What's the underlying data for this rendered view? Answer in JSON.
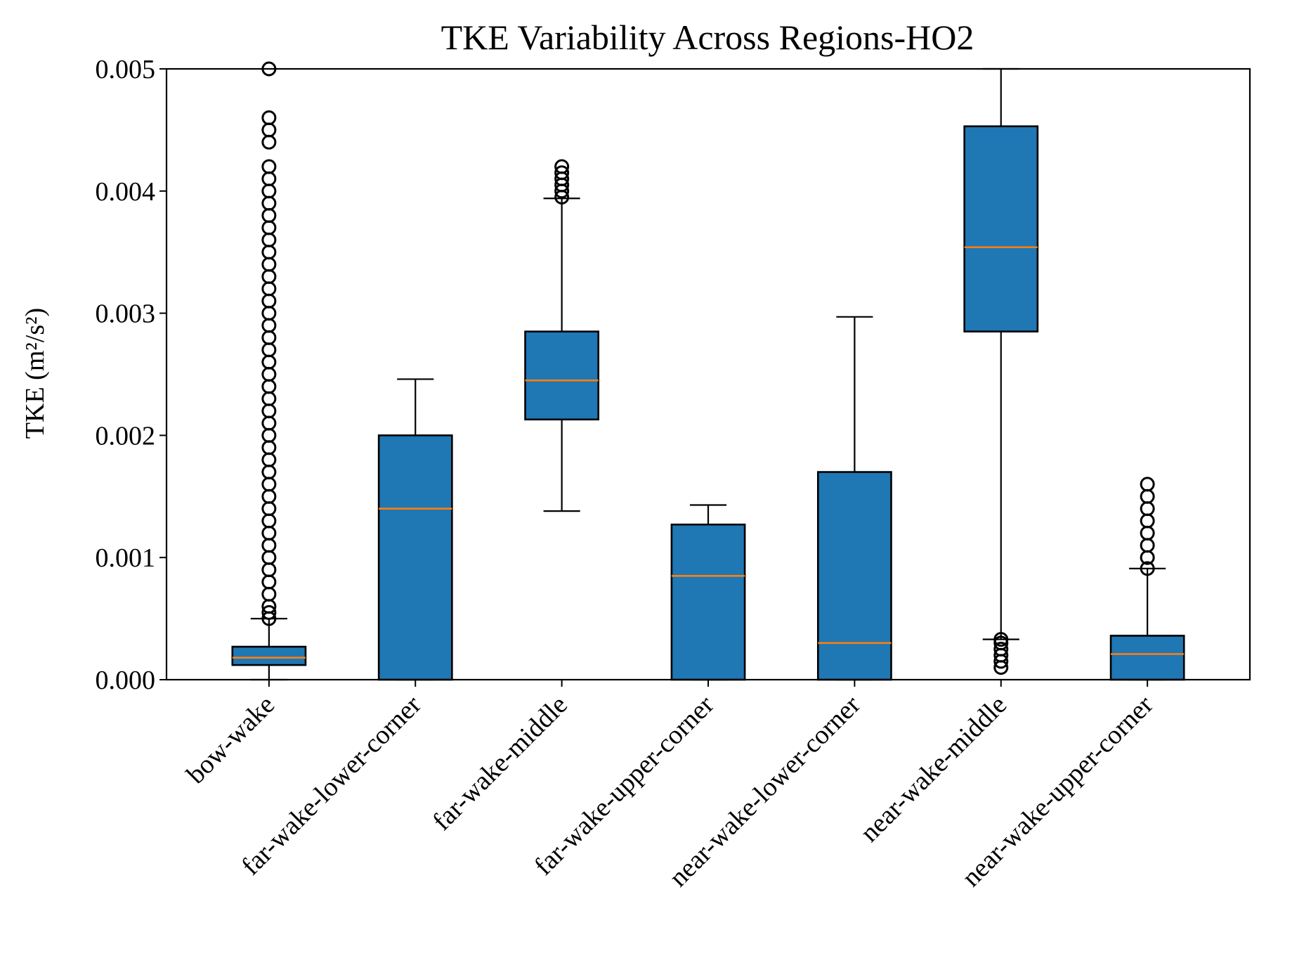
{
  "chart_data": {
    "type": "box",
    "title": "TKE Variability Across Regions-HO2",
    "xlabel": "",
    "ylabel": "TKE (m²/s²)",
    "ylim": [
      0,
      0.005
    ],
    "yticks": [
      "0.000",
      "0.001",
      "0.002",
      "0.003",
      "0.004",
      "0.005"
    ],
    "ytick_values": [
      0,
      0.001,
      0.002,
      0.003,
      0.004,
      0.005
    ],
    "grid": false,
    "colors": {
      "box_fill": "#1f77b4",
      "median": "#ff7f0e",
      "outline": "#000000"
    },
    "categories": [
      "bow-wake",
      "far-wake-lower-corner",
      "far-wake-middle",
      "far-wake-upper-corner",
      "near-wake-lower-corner",
      "near-wake-middle",
      "near-wake-upper-corner"
    ],
    "boxes": [
      {
        "category": "bow-wake",
        "whisker_low": 0.0,
        "q1": 0.00012,
        "median": 0.00018,
        "q3": 0.00027,
        "whisker_high": 0.0005,
        "outliers": [
          0.0005,
          0.00055,
          0.0006,
          0.0007,
          0.0008,
          0.0009,
          0.001,
          0.0011,
          0.0012,
          0.0013,
          0.0014,
          0.0015,
          0.0016,
          0.0017,
          0.0018,
          0.0019,
          0.002,
          0.0021,
          0.0022,
          0.0023,
          0.0024,
          0.0025,
          0.0026,
          0.0027,
          0.0028,
          0.0029,
          0.003,
          0.0031,
          0.0032,
          0.0033,
          0.0034,
          0.0035,
          0.0036,
          0.0037,
          0.0038,
          0.0039,
          0.004,
          0.0041,
          0.0042,
          0.0044,
          0.0045,
          0.0046,
          0.005
        ]
      },
      {
        "category": "far-wake-lower-corner",
        "whisker_low": 0.0,
        "q1": 0.0,
        "median": 0.0014,
        "q3": 0.002,
        "whisker_high": 0.00246,
        "outliers": []
      },
      {
        "category": "far-wake-middle",
        "whisker_low": 0.00138,
        "q1": 0.00213,
        "median": 0.00245,
        "q3": 0.00285,
        "whisker_high": 0.00394,
        "outliers": [
          0.00395,
          0.004,
          0.00405,
          0.0041,
          0.00415,
          0.0042
        ]
      },
      {
        "category": "far-wake-upper-corner",
        "whisker_low": 0.0,
        "q1": 0.0,
        "median": 0.00085,
        "q3": 0.00127,
        "whisker_high": 0.00143,
        "outliers": []
      },
      {
        "category": "near-wake-lower-corner",
        "whisker_low": 0.0,
        "q1": 0.0,
        "median": 0.0003,
        "q3": 0.0017,
        "whisker_high": 0.00297,
        "outliers": []
      },
      {
        "category": "near-wake-middle",
        "whisker_low": 0.00033,
        "q1": 0.00285,
        "median": 0.00354,
        "q3": 0.00453,
        "whisker_high": 0.005,
        "outliers": [
          0.0001,
          0.00015,
          0.0002,
          0.00025,
          0.0003,
          0.00033
        ]
      },
      {
        "category": "near-wake-upper-corner",
        "whisker_low": 0.0,
        "q1": 0.0,
        "median": 0.00021,
        "q3": 0.00036,
        "whisker_high": 0.00091,
        "outliers": [
          0.00091,
          0.001,
          0.0011,
          0.0012,
          0.0013,
          0.0014,
          0.0015,
          0.0016
        ]
      }
    ]
  }
}
